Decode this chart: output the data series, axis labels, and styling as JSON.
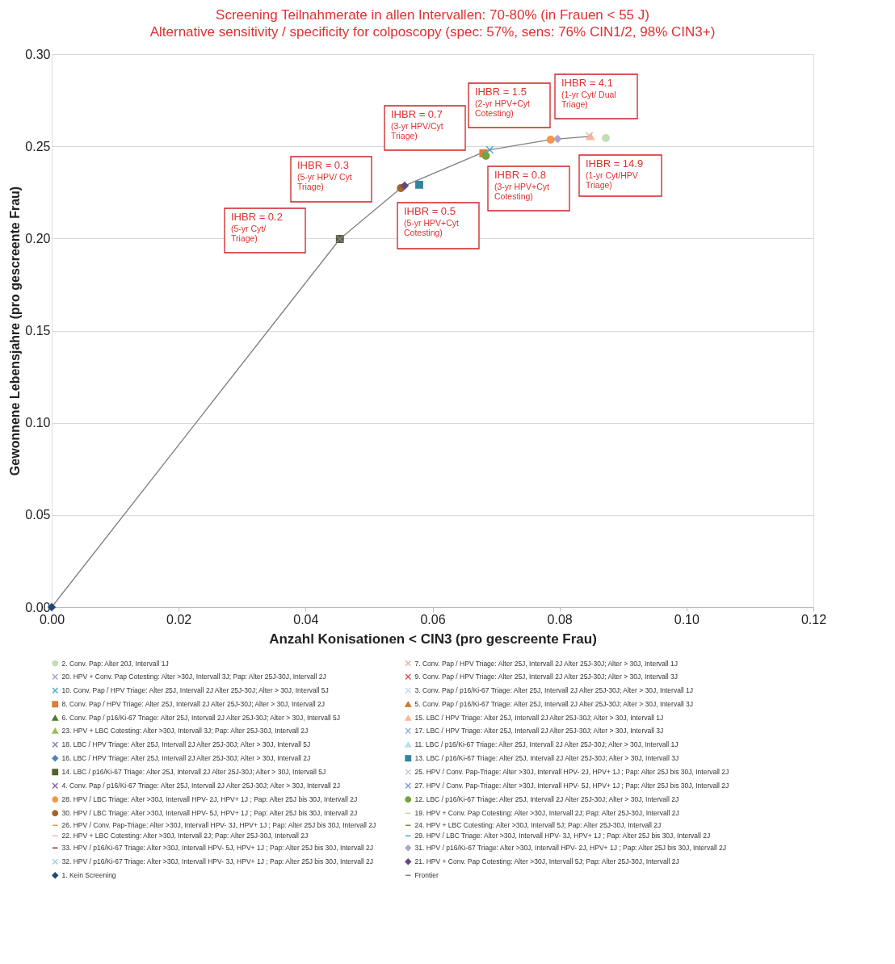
{
  "chart_data": {
    "type": "scatter",
    "title": "Screening Teilnahmerate in allen Intervallen: 70-80% (in Frauen < 55 J)",
    "subtitle": "Alternative sensitivity / specificity for colposcopy (spec: 57%, sens: 76% CIN1/2, 98% CIN3+)",
    "xlabel": "Anzahl Konisationen < CIN3 (pro gescreente Frau)",
    "ylabel": "Gewonnene Lebensjahre  (pro  gescreente Frau)",
    "xlim": [
      0,
      0.12
    ],
    "ylim": [
      0,
      0.3
    ],
    "xticks": [
      {
        "value": 0,
        "label": "0.00"
      },
      {
        "value": 0.02,
        "label": "0.02"
      },
      {
        "value": 0.04,
        "label": "0.04"
      },
      {
        "value": 0.06,
        "label": "0.06"
      },
      {
        "value": 0.08,
        "label": "0.08"
      },
      {
        "value": 0.1,
        "label": "0.10"
      },
      {
        "value": 0.12,
        "label": "0.12"
      }
    ],
    "yticks": [
      {
        "value": 0,
        "label": "0.00"
      },
      {
        "value": 0.05,
        "label": "0.05"
      },
      {
        "value": 0.1,
        "label": "0.10"
      },
      {
        "value": 0.15,
        "label": "0.15"
      },
      {
        "value": 0.2,
        "label": "0.20"
      },
      {
        "value": 0.25,
        "label": "0.25"
      },
      {
        "value": 0.3,
        "label": "0.30"
      }
    ],
    "grid": "y",
    "legend": "bottom",
    "series": [
      {
        "name": "2. Conv. Pap: Alter 20J, Intervall 1J",
        "color": "#c5dcb4",
        "marker": "circle",
        "x": [
          0.0873
        ],
        "values": [
          0.2545
        ]
      },
      {
        "name": "7. Conv. Pap / HPV Triage: Alter 25J, Intervall 2J Alter 25J-30J; Alter > 30J, Intervall 1J",
        "color": "#e8b4b0",
        "marker": "cross",
        "x": [
          0.0847
        ],
        "values": [
          0.2557
        ]
      },
      {
        "name": "20. HPV + Conv. Pap Cotesting: Alter >30J, Intervall 3J; Pap: Alter 25J-30J, Intervall 2J",
        "color": "#a9a2cf",
        "marker": "cross",
        "x": [
          null
        ],
        "values": [
          null
        ]
      },
      {
        "name": "9. Conv. Pap / HPV Triage: Alter 25J, Intervall 2J Alter 25J-30J; Alter > 30J, Intervall 3J",
        "color": "#d9534f",
        "marker": "cross",
        "x": [
          null
        ],
        "values": [
          null
        ]
      },
      {
        "name": "10. Conv. Pap / HPV Triage: Alter 25J, Intervall 2J Alter 25J-30J; Alter > 30J, Intervall 5J",
        "color": "#4bacc6",
        "marker": "cross",
        "x": [
          0.069
        ],
        "values": [
          0.2481
        ]
      },
      {
        "name": "3. Conv. Pap / p16/Ki-67 Triage: Alter 25J, Intervall 2J Alter 25J-30J; Alter > 30J, Intervall 1J",
        "color": "#c6d4ec",
        "marker": "cross",
        "x": [
          null
        ],
        "values": [
          null
        ]
      },
      {
        "name": "8. Conv. Pap / HPV Triage: Alter 25J, Intervall 2J Alter 25J-30J; Alter > 30J, Intervall 2J",
        "color": "#e07b39",
        "marker": "square",
        "x": [
          0.068
        ],
        "values": [
          0.2462
        ]
      },
      {
        "name": "5. Conv. Pap / p16/Ki-67 Triage: Alter 25J, Intervall 2J Alter 25J-30J; Alter > 30J, Intervall 3J",
        "color": "#d0782e",
        "marker": "triangle",
        "x": [
          null
        ],
        "values": [
          null
        ]
      },
      {
        "name": "6. Conv. Pap / p16/Ki-67 Triage: Alter 25J, Intervall 2J Alter 25J-30J; Alter > 30J, Intervall 5J",
        "color": "#4f7d2a",
        "marker": "triangle",
        "x": [
          null
        ],
        "values": [
          null
        ]
      },
      {
        "name": "15. LBC / HPV Triage: Alter 25J, Intervall 2J Alter 25J-30J; Alter > 30J, Intervall 1J",
        "color": "#f9b88e",
        "marker": "triangle",
        "x": [
          0.0849
        ],
        "values": [
          0.2553
        ]
      },
      {
        "name": "23. HPV + LBC Cotesting: Alter >30J, Intervall 3J; Pap: Alter 25J-30J, Intervall 2J",
        "color": "#9bbb59",
        "marker": "triangle",
        "x": [
          null
        ],
        "values": [
          null
        ]
      },
      {
        "name": "17. LBC / HPV Triage: Alter 25J, Intervall 2J Alter 25J-30J; Alter > 30J, Intervall 3J",
        "color": "#95b3d7",
        "marker": "cross",
        "x": [
          null
        ],
        "values": [
          null
        ]
      },
      {
        "name": "18. LBC / HPV Triage: Alter 25J, Intervall 2J Alter 25J-30J; Alter > 30J, Intervall 5J",
        "color": "#8a7fb0",
        "marker": "cross",
        "x": [
          0.0454
        ],
        "values": [
          0.1997
        ]
      },
      {
        "name": "11. LBC / p16/Ki-67 Triage: Alter 25J, Intervall 2J Alter 25J-30J; Alter > 30J, Intervall 1J",
        "color": "#b7dee8",
        "marker": "triangle",
        "x": [
          null
        ],
        "values": [
          null
        ]
      },
      {
        "name": "16. LBC / HPV Triage: Alter 25J, Intervall 2J Alter 25J-30J; Alter > 30J, Intervall 2J",
        "color": "#4f81bd",
        "marker": "diamond",
        "x": [
          null
        ],
        "values": [
          null
        ]
      },
      {
        "name": "13. LBC / p16/Ki-67 Triage: Alter 25J, Intervall 2J Alter 25J-30J; Alter > 30J, Intervall 3J",
        "color": "#31859c",
        "marker": "square",
        "x": [
          0.0579
        ],
        "values": [
          0.2291
        ]
      },
      {
        "name": "14. LBC / p16/Ki-67 Triage: Alter 25J, Intervall 2J Alter 25J-30J; Alter > 30J, Intervall 5J",
        "color": "#4f6228",
        "marker": "square",
        "x": [
          0.0454
        ],
        "values": [
          0.1997
        ]
      },
      {
        "name": "25. HPV / Conv. Pap-Triage: Alter >30J, Intervall  HPV- 2J, HPV+ 1J ; Pap: Alter 25J bis 30J, Intervall 2J",
        "color": "#ccc1da",
        "marker": "cross",
        "x": [
          null
        ],
        "values": [
          null
        ]
      },
      {
        "name": "4. Conv. Pap / p16/Ki-67 Triage: Alter 25J, Intervall 2J Alter 25J-30J; Alter > 30J, Intervall 2J",
        "color": "#8064a2",
        "marker": "cross",
        "x": [
          null
        ],
        "values": [
          null
        ]
      },
      {
        "name": "27. HPV / Conv. Pap-Triage: Alter >30J, Intervall  HPV- 5J, HPV+ 1J ; Pap: Alter 25J bis 30J, Intervall 2J",
        "color": "#7a9fd0",
        "marker": "cross",
        "x": [
          null
        ],
        "values": [
          null
        ]
      },
      {
        "name": "28. HPV / LBC Triage: Alter >30J, Intervall  HPV- 2J, HPV+ 1J ; Pap: Alter 25J bis 30J, Intervall 2J",
        "color": "#f79646",
        "marker": "circle",
        "x": [
          0.0786
        ],
        "values": [
          0.2536
        ]
      },
      {
        "name": "12. LBC / p16/Ki-67 Triage: Alter 25J, Intervall 2J Alter 25J-30J; Alter > 30J, Intervall 2J",
        "color": "#77a13d",
        "marker": "circle",
        "x": [
          0.0684
        ],
        "values": [
          0.2448
        ]
      },
      {
        "name": "30. HPV / LBC Triage: Alter >30J, Intervall  HPV- 5J, HPV+ 1J ; Pap: Alter 25J bis 30J, Intervall 2J",
        "color": "#a5622a",
        "marker": "circle",
        "x": [
          0.055
        ],
        "values": [
          0.2273
        ]
      },
      {
        "name": "19. HPV + Conv. Pap Cotesting: Alter >30J, Intervall 2J; Pap: Alter 25J-30J, Intervall 2J",
        "color": "#c3d69b",
        "marker": "none",
        "x": [
          null
        ],
        "values": [
          null
        ]
      },
      {
        "name": "26. HPV / Conv. Pap-Triage: Alter >30J, Intervall  HPV- 3J, HPV+ 1J ; Pap: Alter 25J bis 30J, Intervall 2J",
        "color": "#f79646",
        "marker": "none",
        "x": [
          null
        ],
        "values": [
          null
        ]
      },
      {
        "name": "24. HPV + LBC Cotesting: Alter >30J, Intervall 5J; Pap: Alter 25J-30J, Intervall 2J",
        "color": "#77933c",
        "marker": "none",
        "x": [
          null
        ],
        "values": [
          null
        ]
      },
      {
        "name": "22. HPV + LBC Cotesting: Alter >30J, Intervall 2J; Pap: Alter 25J-30J, Intervall 2J",
        "color": "#e6b9b8",
        "marker": "none",
        "x": [
          null
        ],
        "values": [
          null
        ]
      },
      {
        "name": "29. HPV / LBC Triage: Alter >30J, Intervall  HPV- 3J, HPV+ 1J ; Pap: Alter 25J bis 30J, Intervall 2J",
        "color": "#4bacc6",
        "marker": "none",
        "x": [
          null
        ],
        "values": [
          null
        ]
      },
      {
        "name": "33. HPV / p16/Ki-67 Triage: Alter >30J, Intervall  HPV- 5J, HPV+ 1J ; Pap: Alter 25J bis 30J, Intervall 2J",
        "color": "#953735",
        "marker": "none",
        "x": [
          null
        ],
        "values": [
          null
        ]
      },
      {
        "name": "31. HPV / p16/Ki-67 Triage: Alter >30J, Intervall  HPV- 2J, HPV+ 1J ; Pap: Alter 25J bis 30J, Intervall 2J",
        "color": "#b3a2c7",
        "marker": "diamond",
        "x": [
          0.0797
        ],
        "values": [
          0.254
        ]
      },
      {
        "name": "32. HPV / p16/Ki-67 Triage: Alter >30J, Intervall  HPV- 3J, HPV+ 1J ; Pap: Alter 25J bis 30J, Intervall 2J",
        "color": "#9fd3e3",
        "marker": "cross",
        "x": [
          null
        ],
        "values": [
          null
        ]
      },
      {
        "name": "21. HPV + Conv. Pap Cotesting: Alter >30J, Intervall 5J; Pap: Alter 25J-30J, Intervall 2J",
        "color": "#604a7b",
        "marker": "diamond",
        "x": [
          0.0556
        ],
        "values": [
          0.2286
        ]
      },
      {
        "name": "1. Kein Screening",
        "color": "#1f497d",
        "marker": "diamond",
        "x": [
          0
        ],
        "values": [
          0
        ]
      },
      {
        "name": "Frontier",
        "type": "line",
        "color": "#808080",
        "marker": "none",
        "x": [
          0,
          0.0454,
          0.055,
          0.0556,
          0.0688,
          0.0786,
          0.0797,
          0.0849
        ],
        "values": [
          0,
          0.1997,
          0.2273,
          0.2286,
          0.2479,
          0.2536,
          0.254,
          0.2554
        ]
      }
    ],
    "annotations": [
      "IHBR = 0.2\n(5-yr Cyt/\nTriage)",
      "IHBR = 0.3\n(5-yr HPV/ Cyt\nTriage)",
      "IHBR = 0.5\n(5-yr HPV+Cyt\nCotesting)",
      "IHBR = 0.7\n(3-yr HPV/Cyt\nTriage)",
      "IHBR = 0.8\n(3-yr HPV+Cyt\nCotesting)",
      "IHBR = 1.5\n(2-yr HPV+Cyt\nCotesting)",
      "IHBR = 4.1\n(1-yr Cyt/ Dual\nTriage)",
      "IHBR = 14.9\n(1-yr Cyt/HPV\nTriage)"
    ]
  }
}
